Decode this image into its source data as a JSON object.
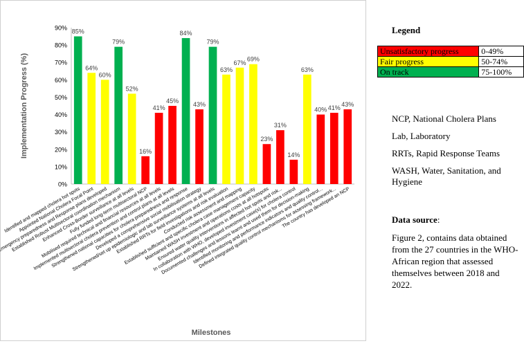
{
  "chart_data": {
    "type": "bar",
    "ylabel": "Implementation Progress (%)",
    "xlabel": "Milestones",
    "ylim": [
      0,
      90
    ],
    "yticks": [
      "0%",
      "10%",
      "20%",
      "30%",
      "40%",
      "50%",
      "60%",
      "70%",
      "80%",
      "90%"
    ],
    "grid": false,
    "categories": [
      "Identified and mapped cholera hot spots",
      "Appointed National Cholera Focal Point",
      "Emergency preparedness and Response plans developed",
      "Established Robust Multisectoral coordination mechanism",
      "Enhanced Cross-Border surveillance at all levels",
      "Fully funded long-term multisectoral NCP",
      "Mobilised required technical and financial resources at all levels",
      "Implemented multisectoral cholera prevention and control plans at all levels",
      "Strengthened national capacities for cholera preparedness and response",
      "Developed a comprehensive social mobilisation strategy",
      "Strengthened/set up epidemiologic and lab surveillance systems at all levels",
      "Established RRTs for field investigations and risk evaluation",
      "Conducted risk assessment and mapping",
      "Established sufficient and specific cholera case management capacity",
      "Maintained WASH investment and operations costs at all hotspots",
      "Ensured water quality interventions in affected hot spots and risk...",
      "In collaboration with WHO, developed investment case(s) for cholera control",
      "Documented challenges and lessons learnt and used them for decision-making",
      "Identified monitoring and performance indicators and quality control...",
      "Defined integrated quality control mechanisms for assessing framework...",
      "The country has developed an NCP"
    ],
    "values": [
      85,
      64,
      60,
      79,
      52,
      16,
      41,
      45,
      84,
      43,
      79,
      63,
      67,
      69,
      23,
      31,
      14,
      63,
      40,
      41,
      43
    ],
    "value_labels": [
      "85%",
      "64%",
      "60%",
      "79%",
      "52%",
      "16%",
      "41%",
      "45%",
      "84%",
      "43%",
      "79%",
      "63%",
      "67%",
      "69%",
      "23%",
      "31%",
      "14%",
      "63%",
      "40%",
      "41%",
      "43%"
    ],
    "status": [
      "green",
      "yellow",
      "yellow",
      "green",
      "yellow",
      "red",
      "red",
      "red",
      "green",
      "red",
      "green",
      "yellow",
      "yellow",
      "yellow",
      "red",
      "red",
      "red",
      "yellow",
      "red",
      "red",
      "red"
    ],
    "colors": {
      "red": "#ff0000",
      "yellow": "#ffff00",
      "green": "#00b050"
    }
  },
  "legend": {
    "title": "Legend",
    "items": [
      {
        "label": "Unsatisfactory progress",
        "range": "0-49%",
        "color": "#ff0000"
      },
      {
        "label": "Fair progress",
        "range": "50-74%",
        "color": "#ffff00"
      },
      {
        "label": "On track",
        "range": "75-100%",
        "color": "#00b050"
      }
    ]
  },
  "abbreviations": [
    "NCP, National Cholera Plans",
    "Lab, Laboratory",
    "RRTs, Rapid Response Teams",
    "WASH, Water, Sanitation, and Hygiene"
  ],
  "data_source": {
    "title": "Data source",
    "title_suffix": ":",
    "text": "Figure 2, contains data obtained from the 27 countries in the WHO-African region that assessed themselves between 2018 and 2022."
  }
}
